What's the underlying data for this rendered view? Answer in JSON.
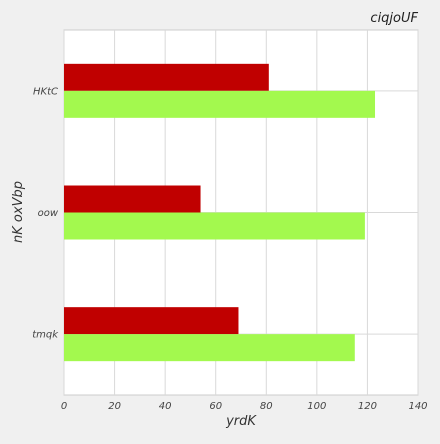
{
  "chart_data": {
    "type": "bar",
    "orientation": "horizontal",
    "title": "ciqjoUF",
    "xlabel": "yrdK",
    "ylabel": "nK oxVbp",
    "categories": [
      "tmqk",
      "oow",
      "HKtC"
    ],
    "series": [
      {
        "values": [
          69,
          54,
          81
        ],
        "color": "#c00000"
      },
      {
        "values": [
          115,
          119,
          123
        ],
        "color": "#a3f94e"
      }
    ],
    "xlim": [
      0,
      140
    ],
    "xticks": [
      0,
      20,
      40,
      60,
      80,
      100,
      120,
      140
    ],
    "grid": true,
    "legend": "none",
    "plot_background": "#ffffff",
    "grid_color": "#d9d9d9"
  }
}
